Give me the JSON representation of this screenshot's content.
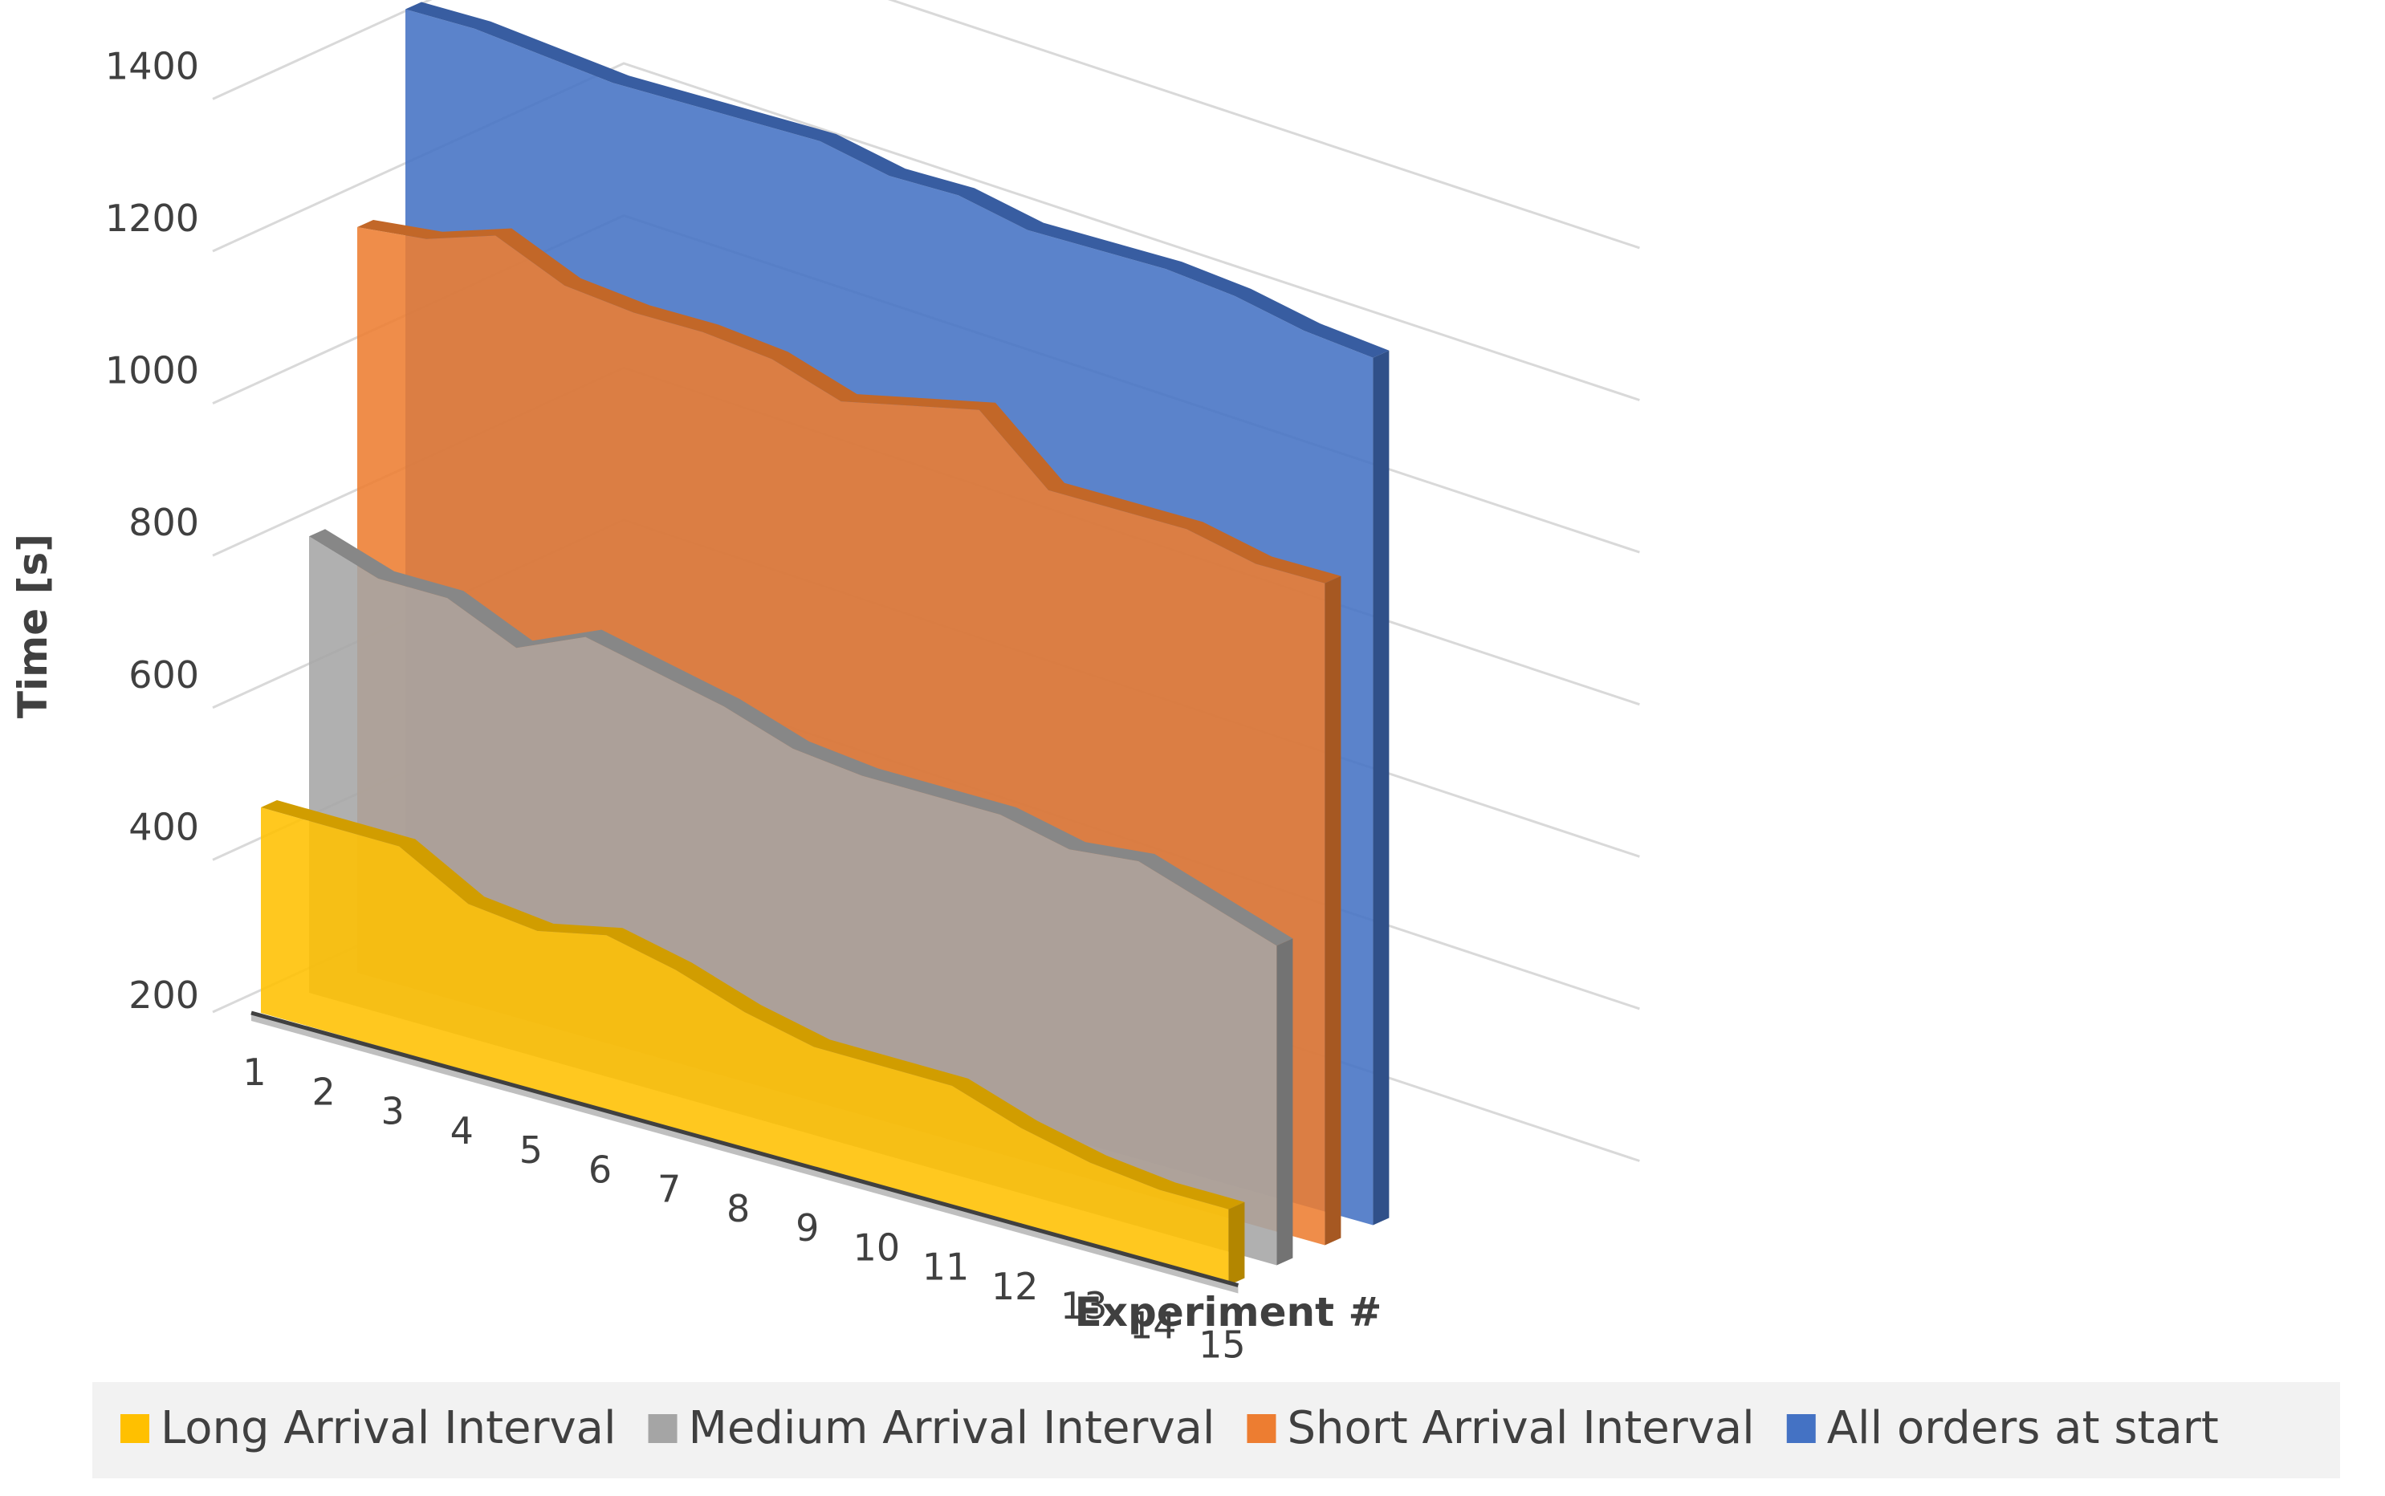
{
  "chart_data": {
    "type": "area",
    "title": "",
    "xlabel": "Experiment #",
    "ylabel": "Time [s]",
    "ylim": [
      200,
      1400
    ],
    "yticks": [
      200,
      400,
      600,
      800,
      1000,
      1200,
      1400
    ],
    "categories": [
      "1",
      "2",
      "3",
      "4",
      "5",
      "6",
      "7",
      "8",
      "9",
      "10",
      "11",
      "12",
      "13",
      "14",
      "15"
    ],
    "legend_position": "bottom",
    "series": [
      {
        "name": "All orders at start",
        "color": "#4472C4",
        "values": [
          1440,
          1440,
          1430,
          1420,
          1420,
          1420,
          1420,
          1400,
          1400,
          1380,
          1380,
          1380,
          1370,
          1350,
          1340
        ]
      },
      {
        "name": "Short Arrival Interval",
        "color": "#ED7D31",
        "values": [
          1180,
          1190,
          1220,
          1180,
          1170,
          1170,
          1160,
          1130,
          1150,
          1170,
          1090,
          1090,
          1090,
          1070,
          1070
        ]
      },
      {
        "name": "Medium Arrival Interval",
        "color": "#A5A5A5",
        "values": [
          800,
          770,
          770,
          730,
          770,
          750,
          730,
          700,
          690,
          690,
          690,
          670,
          680,
          650,
          620
        ]
      },
      {
        "name": "Long Arrival Interval",
        "color": "#FFC000",
        "values": [
          470,
          470,
          470,
          420,
          410,
          430,
          410,
          380,
          360,
          360,
          360,
          330,
          310,
          300,
          300
        ]
      }
    ],
    "legend_order": [
      "Long Arrival Interval",
      "Medium Arrival Interval",
      "Short Arrival Interval",
      "All orders at start"
    ]
  }
}
